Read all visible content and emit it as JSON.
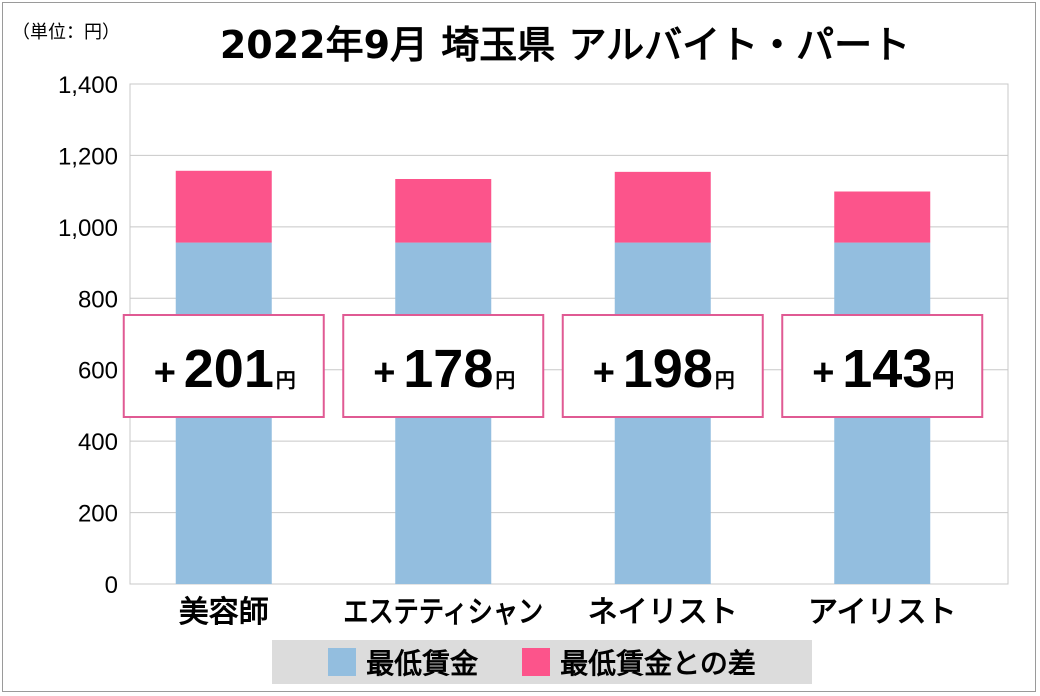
{
  "header": {
    "unit_label": "（単位：円）",
    "title": "2022年9月 埼玉県 アルバイト・パート"
  },
  "colors": {
    "base": "#93bedf",
    "diff": "#fc548b",
    "box_border": "#e05a93",
    "grid": "#c8c8c8"
  },
  "chart_data": {
    "type": "bar",
    "stacked": true,
    "categories": [
      "美容師",
      "エステティシャン",
      "ネイリスト",
      "アイリスト"
    ],
    "series": [
      {
        "name": "最低賃金",
        "values": [
          956,
          956,
          956,
          956
        ]
      },
      {
        "name": "最低賃金との差",
        "values": [
          201,
          178,
          198,
          143
        ]
      }
    ],
    "diff_labels": [
      {
        "sign": "+",
        "value": "201",
        "unit": "円"
      },
      {
        "sign": "+",
        "value": "178",
        "unit": "円"
      },
      {
        "sign": "+",
        "value": "198",
        "unit": "円"
      },
      {
        "sign": "+",
        "value": "143",
        "unit": "円"
      }
    ],
    "yticks": [
      "0",
      "200",
      "400",
      "600",
      "800",
      "1,000",
      "1,200",
      "1,400"
    ],
    "ylim": [
      0,
      1400
    ],
    "grid": true,
    "legend_position": "bottom"
  }
}
